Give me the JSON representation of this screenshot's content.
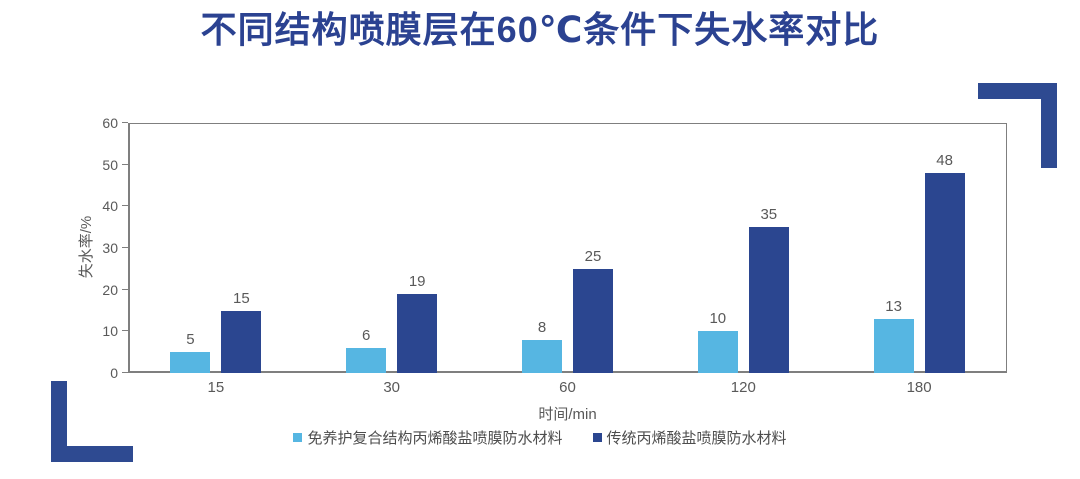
{
  "page": {
    "title": "不同结构喷膜层在60℃条件下失水率对比"
  },
  "chart_data": {
    "type": "bar",
    "title": "不同结构喷膜层在60℃条件下失水率对比",
    "categories": [
      "15",
      "30",
      "60",
      "120",
      "180"
    ],
    "series": [
      {
        "name": "免养护复合结构丙烯酸盐喷膜防水材料",
        "color": "#56B6E2",
        "values": [
          5,
          6,
          8,
          10,
          13
        ]
      },
      {
        "name": "传统丙烯酸盐喷膜防水材料",
        "color": "#2B4690",
        "values": [
          15,
          19,
          25,
          35,
          48
        ]
      }
    ],
    "xlabel": "时间/min",
    "ylabel": "失水率/%",
    "ylim": [
      0,
      60
    ],
    "yticks": [
      0,
      10,
      20,
      30,
      40,
      50,
      60
    ],
    "grid": false,
    "legend_position": "bottom",
    "data_labels": true
  },
  "decorations": {
    "corner_bracket_color": "#2E4A91",
    "title_color": "#2B4291",
    "axis_color": "#7f7f7f",
    "label_color": "#595959"
  }
}
